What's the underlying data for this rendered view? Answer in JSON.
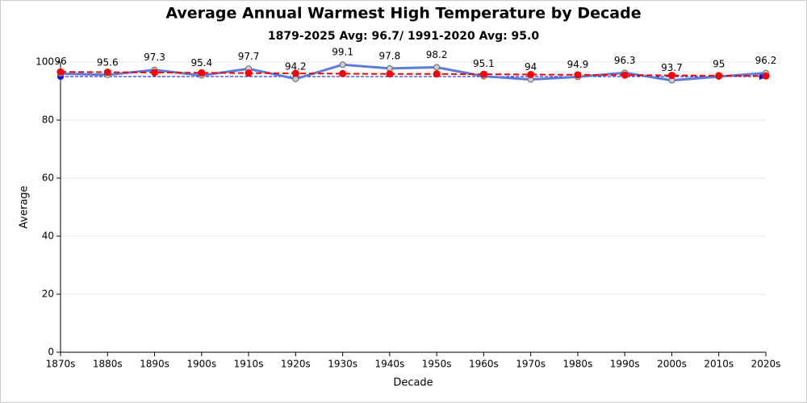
{
  "chart_data": {
    "type": "line",
    "title": "Average Annual Warmest High Temperature by Decade",
    "subtitle": "1879-2025 Avg: 96.7/ 1991-2020 Avg: 95.0",
    "x_label": "Decade",
    "y_label": "Average",
    "categories": [
      "1870s",
      "1880s",
      "1890s",
      "1900s",
      "1910s",
      "1920s",
      "1930s",
      "1940s",
      "1950s",
      "1960s",
      "1970s",
      "1980s",
      "1990s",
      "2000s",
      "2010s",
      "2020s"
    ],
    "series": [
      {
        "color": "#5b7be0",
        "values": [
          96,
          95.6,
          97.3,
          95.4,
          97.7,
          94.2,
          99.1,
          97.8,
          98.2,
          95.1,
          94,
          94.9,
          96.3,
          93.7,
          95,
          96.2
        ],
        "labels": true
      },
      {
        "color": "#ff0000",
        "dashed": true,
        "values": [
          96.6,
          96.5,
          96.4,
          96.3,
          96.2,
          96.1,
          96.0,
          95.9,
          95.9,
          95.8,
          95.7,
          95.6,
          95.5,
          95.4,
          95.3,
          95.2
        ]
      }
    ],
    "reference_line": {
      "value": 95,
      "color": "#0000ff"
    },
    "ylim": [
      0,
      100
    ],
    "yticks": [
      0,
      20,
      40,
      60,
      80,
      100
    ],
    "grid": true
  }
}
